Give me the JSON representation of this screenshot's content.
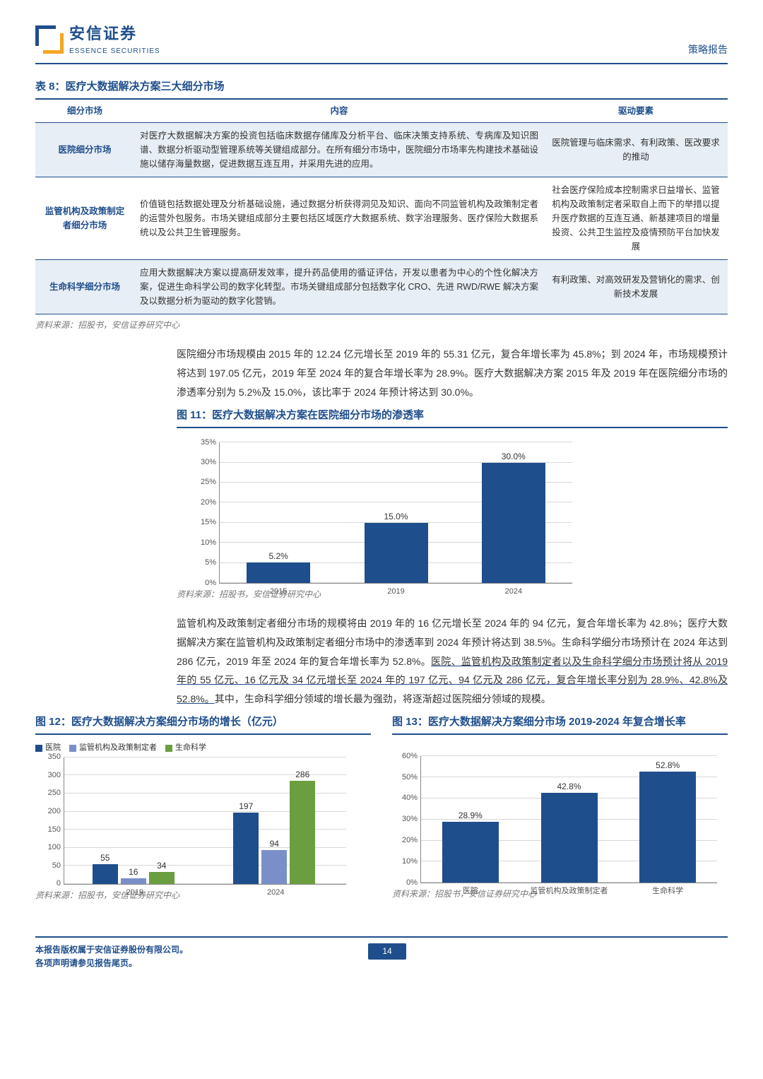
{
  "header": {
    "logo_cn": "安信证券",
    "logo_en": "ESSENCE SECURITIES",
    "report_type": "策略报告"
  },
  "table8": {
    "title": "表 8：医疗大数据解决方案三大细分市场",
    "columns": [
      "细分市场",
      "内容",
      "驱动要素"
    ],
    "rows": [
      {
        "label": "医院细分市场",
        "content": "对医疗大数据解决方案的投资包括临床数据存储库及分析平台、临床决策支持系统、专病库及知识图谱、数据分析驱动型管理系统等关键组成部分。在所有细分市场中，医院细分市场率先构建技术基础设施以储存海量数据，促进数据互连互用，并采用先进的应用。",
        "driver": "医院管理与临床需求、有利政策、医改要求的推动"
      },
      {
        "label": "监管机构及政策制定者细分市场",
        "content": "价值链包括数据处理及分析基础设施，通过数据分析获得洞见及知识、面向不同监管机构及政策制定者的运营外包服务。市场关键组成部分主要包括区域医疗大数据系统、数字治理服务、医疗保险大数据系统以及公共卫生管理服务。",
        "driver": "社会医疗保险成本控制需求日益增长、监管机构及政策制定者采取自上而下的举措以提升医疗数据的互连互通、新基建项目的增量投资、公共卫生监控及疫情预防平台加快发展"
      },
      {
        "label": "生命科学细分市场",
        "content": "应用大数据解决方案以提高研发效率，提升药品使用的循证评估，开发以患者为中心的个性化解决方案，促进生命科学公司的数字化转型。市场关键组成部分包括数字化 CRO、先进 RWD/RWE 解决方案及以数据分析为驱动的数字化营销。",
        "driver": "有利政策、对高效研发及营销化的需求、创新技术发展"
      }
    ],
    "source": "资料来源：招股书，安信证券研究中心"
  },
  "para1": "医院细分市场规模由 2015 年的 12.24 亿元增长至 2019 年的 55.31 亿元，复合年增长率为 45.8%；到 2024 年，市场规模预计将达到 197.05 亿元，2019 年至 2024 年的复合年增长率为 28.9%。医疗大数据解决方案 2015 年及 2019 年在医院细分市场的渗透率分别为 5.2%及 15.0%，该比率于 2024 年预计将达到 30.0%。",
  "figure11": {
    "title": "图 11：医疗大数据解决方案在医院细分市场的渗透率",
    "type": "bar",
    "categories": [
      "2015",
      "2019",
      "2024"
    ],
    "values": [
      5.2,
      15.0,
      30.0
    ],
    "value_labels": [
      "5.2%",
      "15.0%",
      "30.0%"
    ],
    "ylim_max": 35,
    "ytick_step": 5,
    "ytick_labels": [
      "0%",
      "5%",
      "10%",
      "15%",
      "20%",
      "25%",
      "30%",
      "35%"
    ],
    "bar_color": "#1f4e8c",
    "source": "资料来源：招股书，安信证券研究中心"
  },
  "para2_plain": "监管机构及政策制定者细分市场的规模将由 2019 年的 16 亿元增长至 2024 年的 94 亿元，复合年增长率为 42.8%；医疗大数据解决方案在监管机构及政策制定者细分市场中的渗透率到 2024 年预计将达到 38.5%。生命科学细分市场预计在 2024 年达到 286 亿元，2019 年至 2024 年的复合年增长率为 52.8%。",
  "para2_ul": "医院、监管机构及政策制定者以及生命科学细分市场预计将从 2019 年的 55 亿元、16 亿元及 34 亿元增长至 2024 年的 197 亿元、94 亿元及 286 亿元，复合年增长率分别为 28.9%、42.8%及 52.8%。",
  "para2_tail": "其中，生命科学细分领域的增长最为强劲，将逐渐超过医院细分领域的规模。",
  "figure12": {
    "title": "图 12：医疗大数据解决方案细分市场的增长（亿元）",
    "type": "grouped-bar",
    "groups": [
      "2019",
      "2024"
    ],
    "series": [
      {
        "name": "医院",
        "color": "#1f4e8c",
        "values": [
          55,
          197
        ]
      },
      {
        "name": "监管机构及政策制定者",
        "color": "#7a8fc9",
        "values": [
          16,
          94
        ]
      },
      {
        "name": "生命科学",
        "color": "#6b9e3f",
        "values": [
          34,
          286
        ]
      }
    ],
    "ylim_max": 350,
    "ytick_step": 50,
    "source": "资料来源：招股书，安信证券研究中心"
  },
  "figure13": {
    "title": "图 13：医疗大数据解决方案细分市场 2019-2024 年复合增长率",
    "type": "bar",
    "categories": [
      "医院",
      "监管机构及政策制定者",
      "生命科学"
    ],
    "values": [
      28.9,
      42.8,
      52.8
    ],
    "value_labels": [
      "28.9%",
      "42.8%",
      "52.8%"
    ],
    "ylim_max": 60,
    "ytick_step": 10,
    "ytick_labels": [
      "0%",
      "10%",
      "20%",
      "30%",
      "40%",
      "50%",
      "60%"
    ],
    "bar_color": "#1f4e8c",
    "source": "资料来源：招股书，安信证券研究中心"
  },
  "footer": {
    "line1": "本报告版权属于安信证券股份有限公司。",
    "line2": "各项声明请参见报告尾页。",
    "page": "14"
  }
}
